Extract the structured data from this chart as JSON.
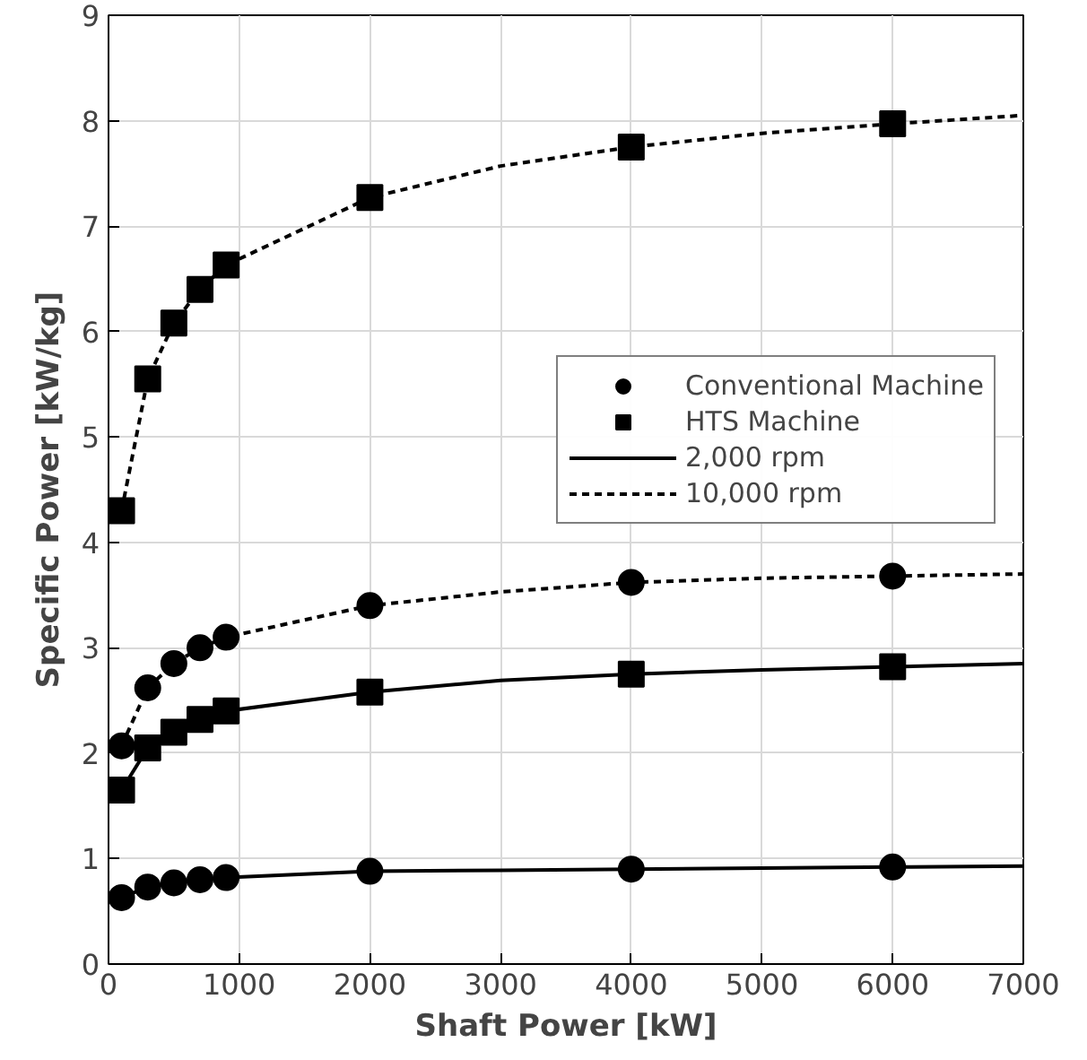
{
  "chart_data": {
    "type": "line",
    "xlabel": "Shaft Power [kW]",
    "ylabel": "Specific Power [kW/kg]",
    "xlim": [
      0,
      7000
    ],
    "xticks": [
      0,
      1000,
      2000,
      3000,
      4000,
      5000,
      6000,
      7000
    ],
    "ylim": [
      0,
      9
    ],
    "yticks": [
      0,
      1,
      2,
      3,
      4,
      5,
      6,
      7,
      8,
      9
    ],
    "grid": true,
    "legend": "right",
    "series": [
      {
        "name": "Conventional Machine",
        "type": "scatter",
        "marker": "circle",
        "color": "#000000",
        "x": [
          100,
          300,
          500,
          700,
          900,
          2000,
          4000,
          6000,
          100,
          300,
          500,
          700,
          900,
          2000,
          4000,
          6000
        ],
        "values": [
          2.07,
          2.62,
          2.85,
          3.0,
          3.1,
          3.4,
          3.62,
          3.68,
          0.63,
          0.73,
          0.77,
          0.8,
          0.82,
          0.88,
          0.9,
          0.92
        ]
      },
      {
        "name": "HTS Machine",
        "type": "scatter",
        "marker": "square",
        "color": "#000000",
        "x": [
          100,
          300,
          500,
          700,
          900,
          2000,
          4000,
          6000,
          100,
          300,
          500,
          700,
          900,
          2000,
          4000,
          6000
        ],
        "values": [
          4.3,
          5.55,
          6.08,
          6.4,
          6.63,
          7.27,
          7.75,
          7.97,
          1.65,
          2.05,
          2.2,
          2.32,
          2.4,
          2.58,
          2.75,
          2.82
        ]
      },
      {
        "name": "2,000 rpm",
        "line_style": "solid",
        "color": "#000000",
        "x": [
          100,
          300,
          500,
          700,
          900,
          2000,
          3000,
          4000,
          5000,
          6000,
          7000
        ],
        "values": [
          1.65,
          2.05,
          2.2,
          2.32,
          2.4,
          2.58,
          2.69,
          2.75,
          2.79,
          2.82,
          2.85
        ]
      },
      {
        "line_style": "solid",
        "color": "#000000",
        "x": [
          100,
          300,
          500,
          700,
          900,
          2000,
          3000,
          4000,
          5000,
          6000,
          7000
        ],
        "values": [
          0.63,
          0.73,
          0.77,
          0.8,
          0.82,
          0.88,
          0.89,
          0.9,
          0.91,
          0.92,
          0.93
        ]
      },
      {
        "name": "10,000 rpm",
        "line_style": "dashed",
        "color": "#000000",
        "x": [
          100,
          300,
          500,
          700,
          900,
          2000,
          3000,
          4000,
          5000,
          6000,
          7000
        ],
        "values": [
          4.3,
          5.55,
          6.08,
          6.4,
          6.63,
          7.27,
          7.57,
          7.75,
          7.88,
          7.97,
          8.05
        ]
      },
      {
        "line_style": "dashed",
        "color": "#000000",
        "x": [
          100,
          300,
          500,
          700,
          900,
          2000,
          3000,
          4000,
          5000,
          6000,
          7000
        ],
        "values": [
          2.07,
          2.62,
          2.85,
          3.0,
          3.1,
          3.4,
          3.53,
          3.62,
          3.66,
          3.68,
          3.7
        ]
      }
    ]
  }
}
